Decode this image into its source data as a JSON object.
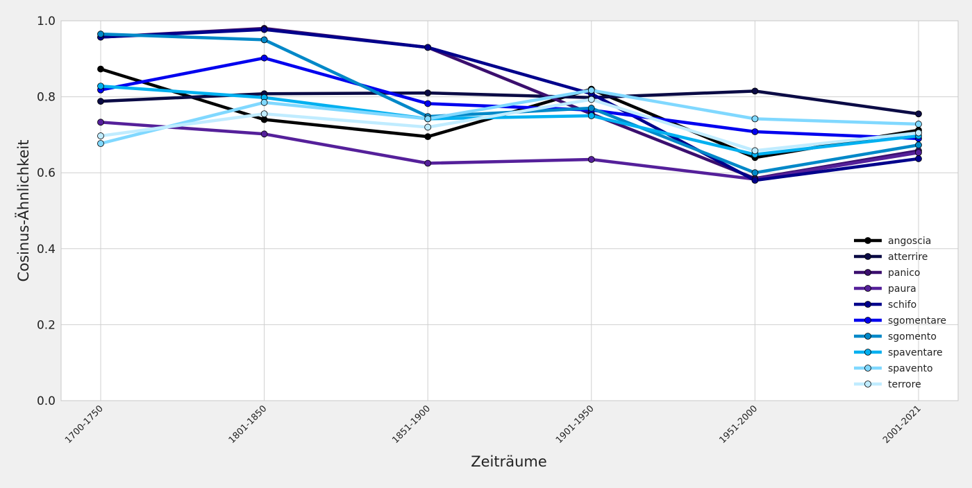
{
  "chart_data": {
    "type": "line",
    "title": "",
    "xlabel": "Zeiträume",
    "ylabel": "Cosinus-Ähnlichkeit",
    "ylim": [
      0.0,
      1.0
    ],
    "y_ticks": [
      "0.0",
      "0.2",
      "0.4",
      "0.6",
      "0.8",
      "1.0"
    ],
    "categories": [
      "1700-1750",
      "1801-1850",
      "1851-1900",
      "1901-1950",
      "1951-2000",
      "2001-2021"
    ],
    "grid": true,
    "legend_position": "lower-right",
    "series": [
      {
        "name": "angoscia",
        "color": "#000000",
        "marker_fill": "#000000",
        "values": [
          0.873,
          0.74,
          0.695,
          0.82,
          0.64,
          0.712
        ]
      },
      {
        "name": "atterrire",
        "color": "#0b0b45",
        "marker_fill": "#0b0b45",
        "values": [
          0.788,
          0.808,
          0.81,
          0.798,
          0.815,
          0.755
        ]
      },
      {
        "name": "panico",
        "color": "#3b0f6e",
        "marker_fill": "#3b0f6e",
        "values": [
          0.957,
          0.98,
          0.93,
          0.755,
          0.585,
          0.658
        ]
      },
      {
        "name": "paura",
        "color": "#55209a",
        "marker_fill": "#55209a",
        "values": [
          0.733,
          0.702,
          0.625,
          0.635,
          0.583,
          0.653
        ]
      },
      {
        "name": "schifo",
        "color": "#00008b",
        "marker_fill": "#00008b",
        "values": [
          0.957,
          0.977,
          0.93,
          0.808,
          0.58,
          0.637
        ]
      },
      {
        "name": "sgomentare",
        "color": "#0000ee",
        "marker_fill": "#0000ee",
        "values": [
          0.818,
          0.902,
          0.782,
          0.765,
          0.708,
          0.69
        ]
      },
      {
        "name": "sgomento",
        "color": "#0088c8",
        "marker_fill": "#0088c8",
        "values": [
          0.965,
          0.95,
          0.748,
          0.77,
          0.6,
          0.673
        ]
      },
      {
        "name": "spaventare",
        "color": "#00b0f0",
        "marker_fill": "#00b0f0",
        "values": [
          0.828,
          0.798,
          0.742,
          0.75,
          0.648,
          0.697
        ]
      },
      {
        "name": "spavento",
        "color": "#80d8ff",
        "marker_fill": "#80d8ff",
        "values": [
          0.677,
          0.785,
          0.742,
          0.817,
          0.742,
          0.728
        ]
      },
      {
        "name": "terrore",
        "color": "#c0ecff",
        "marker_fill": "#c0ecff",
        "values": [
          0.697,
          0.755,
          0.72,
          0.793,
          0.658,
          0.705
        ]
      }
    ]
  }
}
